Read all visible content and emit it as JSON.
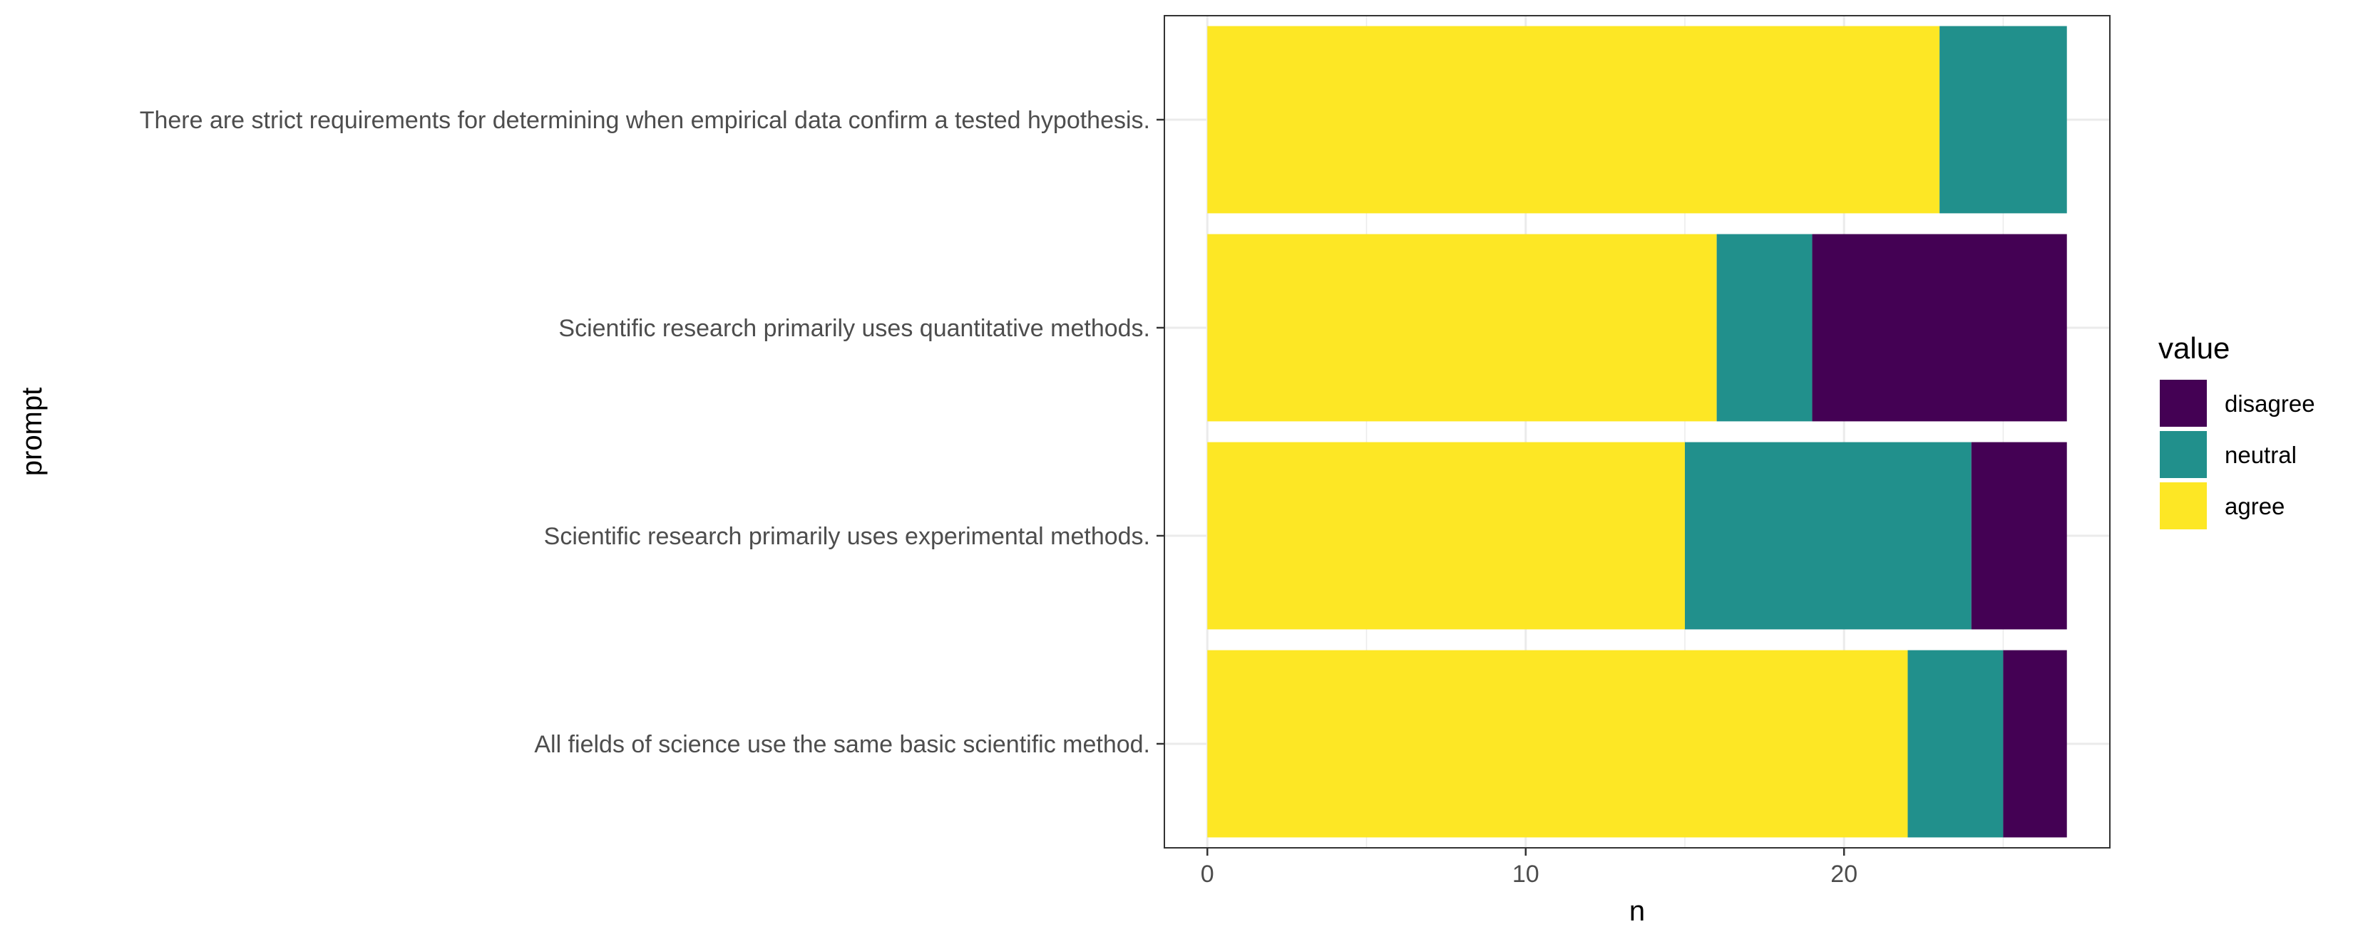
{
  "chart_data": {
    "type": "bar",
    "orientation": "horizontal",
    "stacked": true,
    "categories": [
      "There are strict requirements for determining when empirical data confirm a tested hypothesis.",
      "Scientific research primarily uses quantitative methods.",
      "Scientific research primarily uses experimental methods.",
      "All fields of science use the same basic scientific method."
    ],
    "series": [
      {
        "name": "agree",
        "color": "#FDE725",
        "values": [
          23,
          16,
          15,
          22
        ]
      },
      {
        "name": "neutral",
        "color": "#21908C",
        "values": [
          4,
          3,
          9,
          3
        ]
      },
      {
        "name": "disagree",
        "color": "#440154",
        "values": [
          0,
          8,
          3,
          2
        ]
      }
    ],
    "xlabel": "n",
    "ylabel": "prompt",
    "xlim": [
      -1.35,
      28.35
    ],
    "xticks": [
      0,
      10,
      20
    ],
    "xtick_labels": [
      "0",
      "10",
      "20"
    ],
    "grid": true,
    "legend": {
      "title": "value",
      "position": "right",
      "items": [
        {
          "label": "disagree",
          "color": "#440154"
        },
        {
          "label": "neutral",
          "color": "#21908C"
        },
        {
          "label": "agree",
          "color": "#FDE725"
        }
      ]
    }
  }
}
